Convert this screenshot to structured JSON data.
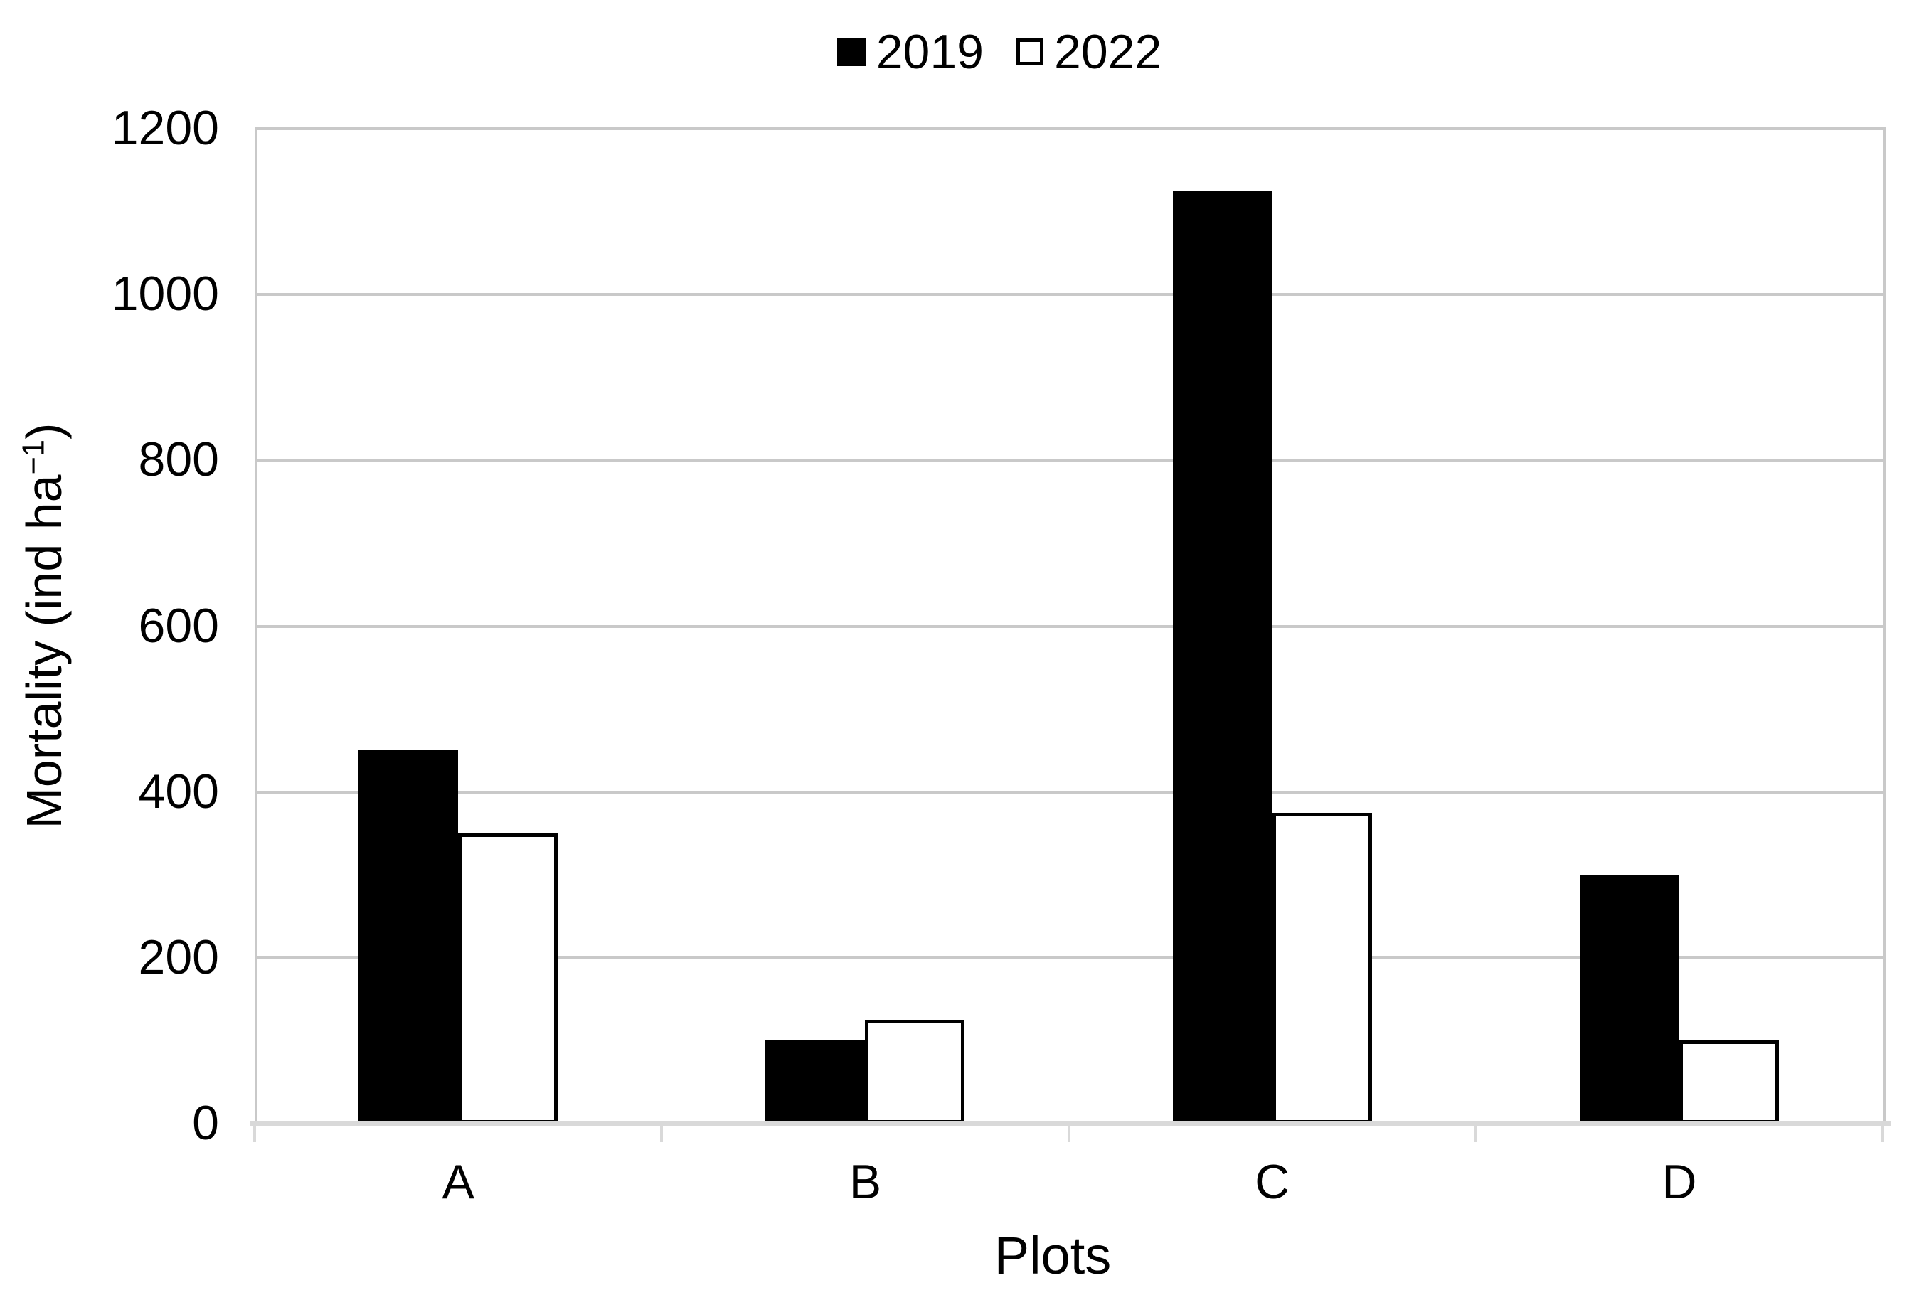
{
  "chart_data": {
    "type": "bar",
    "title": "",
    "categories": [
      "A",
      "B",
      "C",
      "D"
    ],
    "series": [
      {
        "name": "2019",
        "fill": "#000000",
        "values": [
          450,
          100,
          1125,
          300
        ]
      },
      {
        "name": "2022",
        "fill": "#ffffff",
        "stroke": "#000000",
        "values": [
          350,
          125,
          375,
          100
        ]
      }
    ],
    "xlabel": "Plots",
    "ylabel_main": "Mortality (ind ha",
    "ylabel_sup": "−1",
    "ylabel_end": ")",
    "ylim": [
      0,
      1200
    ],
    "y_ticks": [
      0,
      200,
      400,
      600,
      800,
      1000,
      1200
    ],
    "grid": true,
    "legend_position": "top center",
    "colors": {
      "bar_2019": "#000000",
      "bar_2022_fill": "#ffffff",
      "bar_2022_stroke": "#000000",
      "gridline": "#c9c9c9",
      "axis_line": "#d9d9d9",
      "text": "#000000"
    }
  }
}
